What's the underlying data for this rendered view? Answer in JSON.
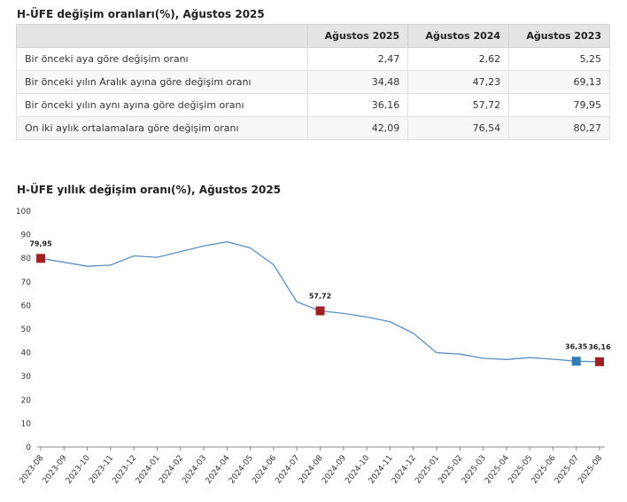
{
  "table": {
    "title": "H-ÜFE değişim oranları(%), Ağustos 2025",
    "header": [
      "",
      "Ağustos 2025",
      "Ağustos 2024",
      "Ağustos 2023"
    ],
    "rows": [
      {
        "label": "Bir önceki aya göre değişim oranı",
        "values": [
          "2,47",
          "2,62",
          "5,25"
        ]
      },
      {
        "label": "Bir önceki yılın Aralık ayına göre değişim oranı",
        "values": [
          "34,48",
          "47,23",
          "69,13"
        ]
      },
      {
        "label": "Bir önceki yılın aynı ayına göre değişim oranı",
        "values": [
          "36,16",
          "57,72",
          "79,95"
        ]
      },
      {
        "label": "On iki aylık ortalamalara göre değişim oranı",
        "values": [
          "42,09",
          "76,54",
          "80,27"
        ]
      }
    ]
  },
  "chart_data": {
    "type": "line",
    "title": "H-ÜFE yıllık değişim oranı(%), Ağustos 2025",
    "xlabel": "",
    "ylabel": "",
    "ylim": [
      0,
      100
    ],
    "yticks": [
      0,
      10,
      20,
      30,
      40,
      50,
      60,
      70,
      80,
      90,
      100
    ],
    "grid": false,
    "categories": [
      "2023-08",
      "2023-09",
      "2023-10",
      "2023-11",
      "2023-12",
      "2024-01",
      "2024-02",
      "2024-03",
      "2024-04",
      "2024-05",
      "2024-06",
      "2024-07",
      "2024-08",
      "2024-09",
      "2024-10",
      "2024-11",
      "2024-12",
      "2025-01",
      "2025-02",
      "2025-03",
      "2025-04",
      "2025-05",
      "2025-06",
      "2025-07",
      "2025-08"
    ],
    "series": [
      {
        "values": [
          79.95,
          78.3,
          76.6,
          77.1,
          81.0,
          80.4,
          82.8,
          85.2,
          87.0,
          84.4,
          77.3,
          61.5,
          57.72,
          56.6,
          55.1,
          53.1,
          48.2,
          40.0,
          39.4,
          37.6,
          37.1,
          37.9,
          37.2,
          36.35,
          36.16
        ]
      }
    ],
    "highlighted_points": [
      {
        "x": "2023-08",
        "value": 79.95,
        "label": "79,95",
        "color": "#a31f24"
      },
      {
        "x": "2024-08",
        "value": 57.72,
        "label": "57,72",
        "color": "#a31f24"
      },
      {
        "x": "2025-07",
        "value": 36.35,
        "label": "36,35",
        "color": "#2f7cb4"
      },
      {
        "x": "2025-08",
        "value": 36.16,
        "label": "36,16",
        "color": "#a31f24"
      }
    ],
    "colors": {
      "line": "#5a8fc2",
      "axis": "#888888"
    }
  }
}
